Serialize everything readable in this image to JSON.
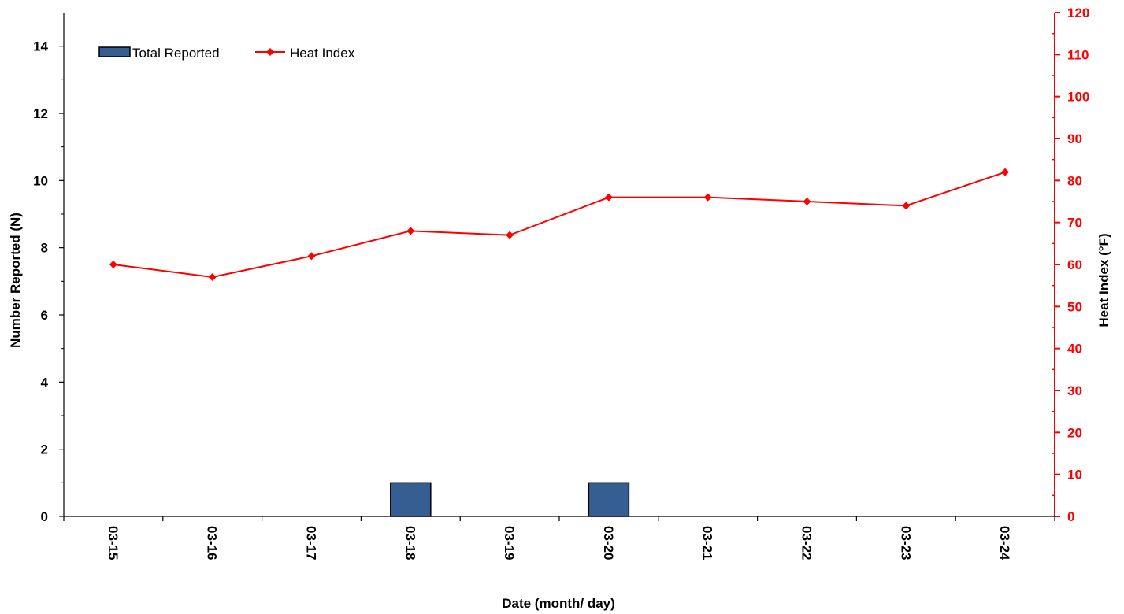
{
  "chart_data": {
    "type": "bar",
    "categories": [
      "03-15",
      "03-16",
      "03-17",
      "03-18",
      "03-19",
      "03-20",
      "03-21",
      "03-22",
      "03-23",
      "03-24"
    ],
    "series": [
      {
        "name": "Total Reported",
        "type": "bar",
        "axis": "left",
        "color": "#355e93",
        "values": [
          0,
          0,
          0,
          1,
          0,
          1,
          0,
          0,
          0,
          0
        ]
      },
      {
        "name": "Heat Index",
        "type": "line",
        "axis": "right",
        "color": "#ff0000",
        "marker": "diamond",
        "values": [
          60,
          57,
          62,
          68,
          67,
          76,
          76,
          75,
          74,
          82
        ]
      }
    ],
    "xlabel": "Date (month/ day)",
    "ylabel": "Number Reported (N)",
    "y2label": "Heat Index (°F)",
    "ylim": [
      0,
      15
    ],
    "yticks": [
      0,
      2,
      4,
      6,
      8,
      10,
      12,
      14
    ],
    "y2lim": [
      0,
      120
    ],
    "y2ticks": [
      0,
      10,
      20,
      30,
      40,
      50,
      60,
      70,
      80,
      90,
      100,
      110,
      120
    ],
    "grid": false,
    "legend_position": "top-left",
    "axis_colors": {
      "left": "#000000",
      "right": "#ff0000"
    }
  }
}
